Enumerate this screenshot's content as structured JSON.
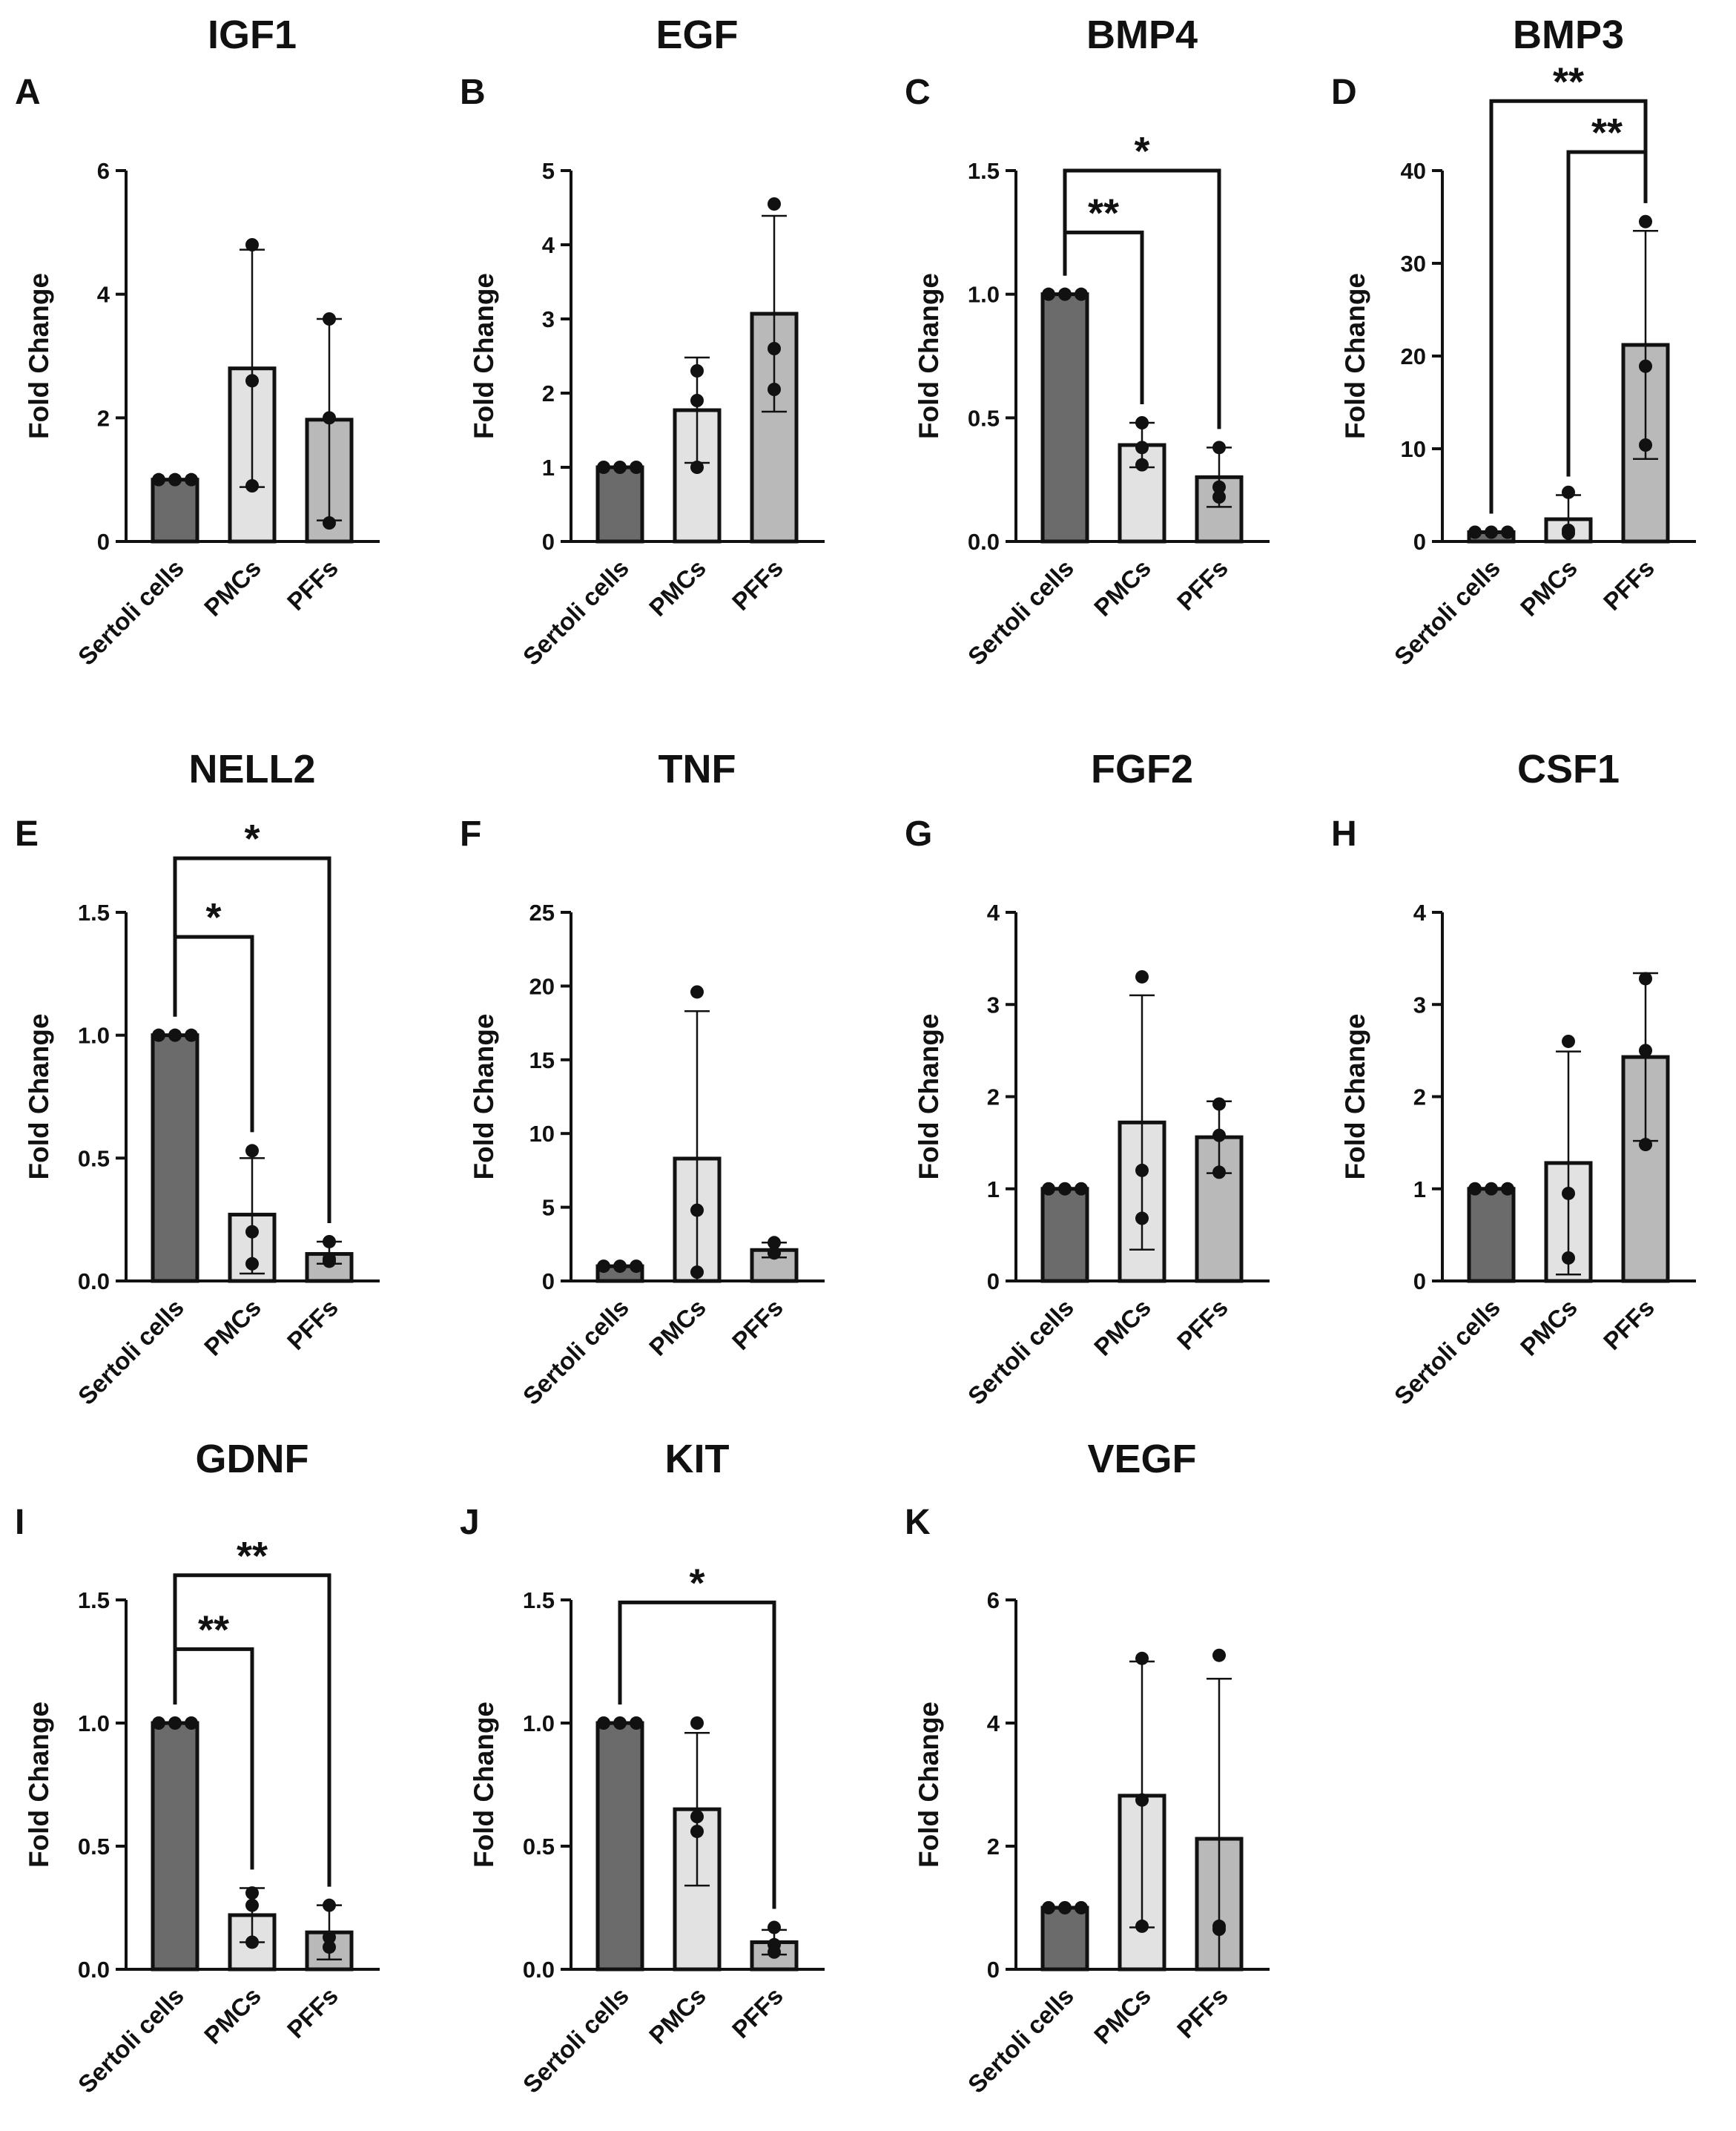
{
  "colors": {
    "sertoli_bar": "#6b6b6b",
    "pmc_bar": "#e2e2e2",
    "pff_bar": "#b9b9b9",
    "ink": "#111111"
  },
  "chart_data": [
    {
      "panel": "A",
      "type": "bar",
      "title": "IGF1",
      "ylabel": "Fold Change",
      "categories": [
        "Sertoli cells",
        "PMCs",
        "PFFs"
      ],
      "values": [
        1.0,
        2.8,
        1.97
      ],
      "error_upper": [
        1.0,
        4.72,
        3.6
      ],
      "error_lower": [
        1.0,
        0.88,
        0.34
      ],
      "points": [
        [
          1.0,
          1.0,
          1.0
        ],
        [
          4.8,
          2.6,
          0.9
        ],
        [
          3.6,
          2.0,
          0.3
        ]
      ],
      "ylim": [
        0,
        6
      ],
      "yticks": [
        "0",
        "2",
        "4",
        "6"
      ],
      "significance": []
    },
    {
      "panel": "B",
      "type": "bar",
      "title": "EGF",
      "ylabel": "Fold Change",
      "categories": [
        "Sertoli cells",
        "PMCs",
        "PFFs"
      ],
      "values": [
        1.0,
        1.77,
        3.07
      ],
      "error_upper": [
        1.0,
        2.48,
        4.39
      ],
      "error_lower": [
        1.0,
        1.06,
        1.75
      ],
      "points": [
        [
          1.0,
          1.0,
          1.0
        ],
        [
          2.3,
          1.9,
          1.0
        ],
        [
          4.55,
          2.6,
          2.05
        ]
      ],
      "ylim": [
        0,
        5
      ],
      "yticks": [
        "0",
        "1",
        "2",
        "3",
        "4",
        "5"
      ],
      "significance": []
    },
    {
      "panel": "C",
      "type": "bar",
      "title": "BMP4",
      "ylabel": "Fold Change",
      "categories": [
        "Sertoli cells",
        "PMCs",
        "PFFs"
      ],
      "values": [
        1.0,
        0.39,
        0.26
      ],
      "error_upper": [
        1.0,
        0.48,
        0.38
      ],
      "error_lower": [
        1.0,
        0.3,
        0.14
      ],
      "points": [
        [
          1.0,
          1.0,
          1.0
        ],
        [
          0.48,
          0.38,
          0.31
        ],
        [
          0.38,
          0.22,
          0.18
        ]
      ],
      "ylim": [
        0,
        1.5
      ],
      "yticks": [
        "0.0",
        "0.5",
        "1.0",
        "1.5"
      ],
      "significance": [
        {
          "from": 0,
          "to": 1,
          "label": "**",
          "level": 1.25
        },
        {
          "from": 0,
          "to": 2,
          "label": "*",
          "level": 1.5
        }
      ]
    },
    {
      "panel": "D",
      "type": "bar",
      "title": "BMP3",
      "ylabel": "Fold Change",
      "categories": [
        "Sertoli cells",
        "PMCs",
        "PFFs"
      ],
      "values": [
        1.0,
        2.4,
        21.2
      ],
      "error_upper": [
        1.0,
        5.0,
        33.5
      ],
      "error_lower": [
        1.0,
        0.0,
        8.9
      ],
      "points": [
        [
          1.0,
          1.0,
          1.0
        ],
        [
          5.3,
          1.2,
          0.9
        ],
        [
          34.5,
          18.9,
          10.4
        ]
      ],
      "ylim": [
        0,
        40
      ],
      "yticks": [
        "0",
        "10",
        "20",
        "30",
        "40"
      ],
      "significance": [
        {
          "from": 1,
          "to": 2,
          "label": "**",
          "level": 42.0
        },
        {
          "from": 0,
          "to": 2,
          "label": "**",
          "level": 47.5
        }
      ]
    },
    {
      "panel": "E",
      "type": "bar",
      "title": "NELL2",
      "ylabel": "Fold Change",
      "categories": [
        "Sertoli cells",
        "PMCs",
        "PFFs"
      ],
      "values": [
        1.0,
        0.27,
        0.11
      ],
      "error_upper": [
        1.0,
        0.5,
        0.16
      ],
      "error_lower": [
        1.0,
        0.03,
        0.07
      ],
      "points": [
        [
          1.0,
          1.0,
          1.0
        ],
        [
          0.53,
          0.2,
          0.07
        ],
        [
          0.16,
          0.09,
          0.08
        ]
      ],
      "ylim": [
        0,
        1.5
      ],
      "yticks": [
        "0.0",
        "0.5",
        "1.0",
        "1.5"
      ],
      "significance": [
        {
          "from": 0,
          "to": 1,
          "label": "*",
          "level": 1.4
        },
        {
          "from": 0,
          "to": 2,
          "label": "*",
          "level": 1.72
        }
      ]
    },
    {
      "panel": "F",
      "type": "bar",
      "title": "TNF",
      "ylabel": "Fold Change",
      "categories": [
        "Sertoli cells",
        "PMCs",
        "PFFs"
      ],
      "values": [
        1.0,
        8.3,
        2.1
      ],
      "error_upper": [
        1.0,
        18.3,
        2.6
      ],
      "error_lower": [
        1.0,
        0.0,
        1.6
      ],
      "points": [
        [
          1.0,
          1.0,
          1.0
        ],
        [
          19.6,
          4.8,
          0.6
        ],
        [
          2.6,
          1.9,
          1.9
        ]
      ],
      "ylim": [
        0,
        25
      ],
      "yticks": [
        "0",
        "5",
        "10",
        "15",
        "20",
        "25"
      ],
      "significance": []
    },
    {
      "panel": "G",
      "type": "bar",
      "title": "FGF2",
      "ylabel": "Fold Change",
      "categories": [
        "Sertoli cells",
        "PMCs",
        "PFFs"
      ],
      "values": [
        1.0,
        1.72,
        1.56
      ],
      "error_upper": [
        1.0,
        3.1,
        1.95
      ],
      "error_lower": [
        1.0,
        0.34,
        1.17
      ],
      "points": [
        [
          1.0,
          1.0,
          1.0
        ],
        [
          3.3,
          1.2,
          0.68
        ],
        [
          1.92,
          1.58,
          1.18
        ]
      ],
      "ylim": [
        0,
        4
      ],
      "yticks": [
        "0",
        "1",
        "2",
        "3",
        "4"
      ],
      "significance": []
    },
    {
      "panel": "H",
      "type": "bar",
      "title": "CSF1",
      "ylabel": "Fold Change",
      "categories": [
        "Sertoli cells",
        "PMCs",
        "PFFs"
      ],
      "values": [
        1.0,
        1.28,
        2.43
      ],
      "error_upper": [
        1.0,
        2.49,
        3.34
      ],
      "error_lower": [
        1.0,
        0.07,
        1.52
      ],
      "points": [
        [
          1.0,
          1.0,
          1.0
        ],
        [
          2.6,
          0.95,
          0.25
        ],
        [
          3.28,
          2.5,
          1.48
        ]
      ],
      "ylim": [
        0,
        4
      ],
      "yticks": [
        "0",
        "1",
        "2",
        "3",
        "4"
      ],
      "significance": []
    },
    {
      "panel": "I",
      "type": "bar",
      "title": "GDNF",
      "ylabel": "Fold Change",
      "categories": [
        "Sertoli cells",
        "PMCs",
        "PFFs"
      ],
      "values": [
        1.0,
        0.22,
        0.15
      ],
      "error_upper": [
        1.0,
        0.33,
        0.26
      ],
      "error_lower": [
        1.0,
        0.11,
        0.04
      ],
      "points": [
        [
          1.0,
          1.0,
          1.0
        ],
        [
          0.31,
          0.26,
          0.11
        ],
        [
          0.26,
          0.13,
          0.09
        ]
      ],
      "ylim": [
        0,
        1.5
      ],
      "yticks": [
        "0.0",
        "0.5",
        "1.0",
        "1.5"
      ],
      "significance": [
        {
          "from": 0,
          "to": 1,
          "label": "**",
          "level": 1.3
        },
        {
          "from": 0,
          "to": 2,
          "label": "**",
          "level": 1.6
        }
      ]
    },
    {
      "panel": "J",
      "type": "bar",
      "title": "KIT",
      "ylabel": "Fold Change",
      "categories": [
        "Sertoli cells",
        "PMCs",
        "PFFs"
      ],
      "values": [
        1.0,
        0.65,
        0.11
      ],
      "error_upper": [
        1.0,
        0.96,
        0.16
      ],
      "error_lower": [
        1.0,
        0.34,
        0.06
      ],
      "points": [
        [
          1.0,
          1.0,
          1.0
        ],
        [
          1.0,
          0.62,
          0.56
        ],
        [
          0.17,
          0.1,
          0.07
        ]
      ],
      "ylim": [
        0,
        1.5
      ],
      "yticks": [
        "0.0",
        "0.5",
        "1.0",
        "1.5"
      ],
      "significance": [
        {
          "from": 0,
          "to": 2,
          "label": "*",
          "level": 1.49
        }
      ]
    },
    {
      "panel": "K",
      "type": "bar",
      "title": "VEGF",
      "ylabel": "Fold Change",
      "categories": [
        "Sertoli cells",
        "PMCs",
        "PFFs"
      ],
      "values": [
        1.0,
        2.82,
        2.12
      ],
      "error_upper": [
        1.0,
        5.0,
        4.72
      ],
      "error_lower": [
        1.0,
        0.68,
        0.0
      ],
      "points": [
        [
          1.0,
          1.0,
          1.0
        ],
        [
          5.05,
          2.75,
          0.7
        ],
        [
          5.1,
          0.7,
          0.65
        ]
      ],
      "ylim": [
        0,
        6
      ],
      "yticks": [
        "0",
        "2",
        "4",
        "6"
      ],
      "significance": []
    }
  ]
}
